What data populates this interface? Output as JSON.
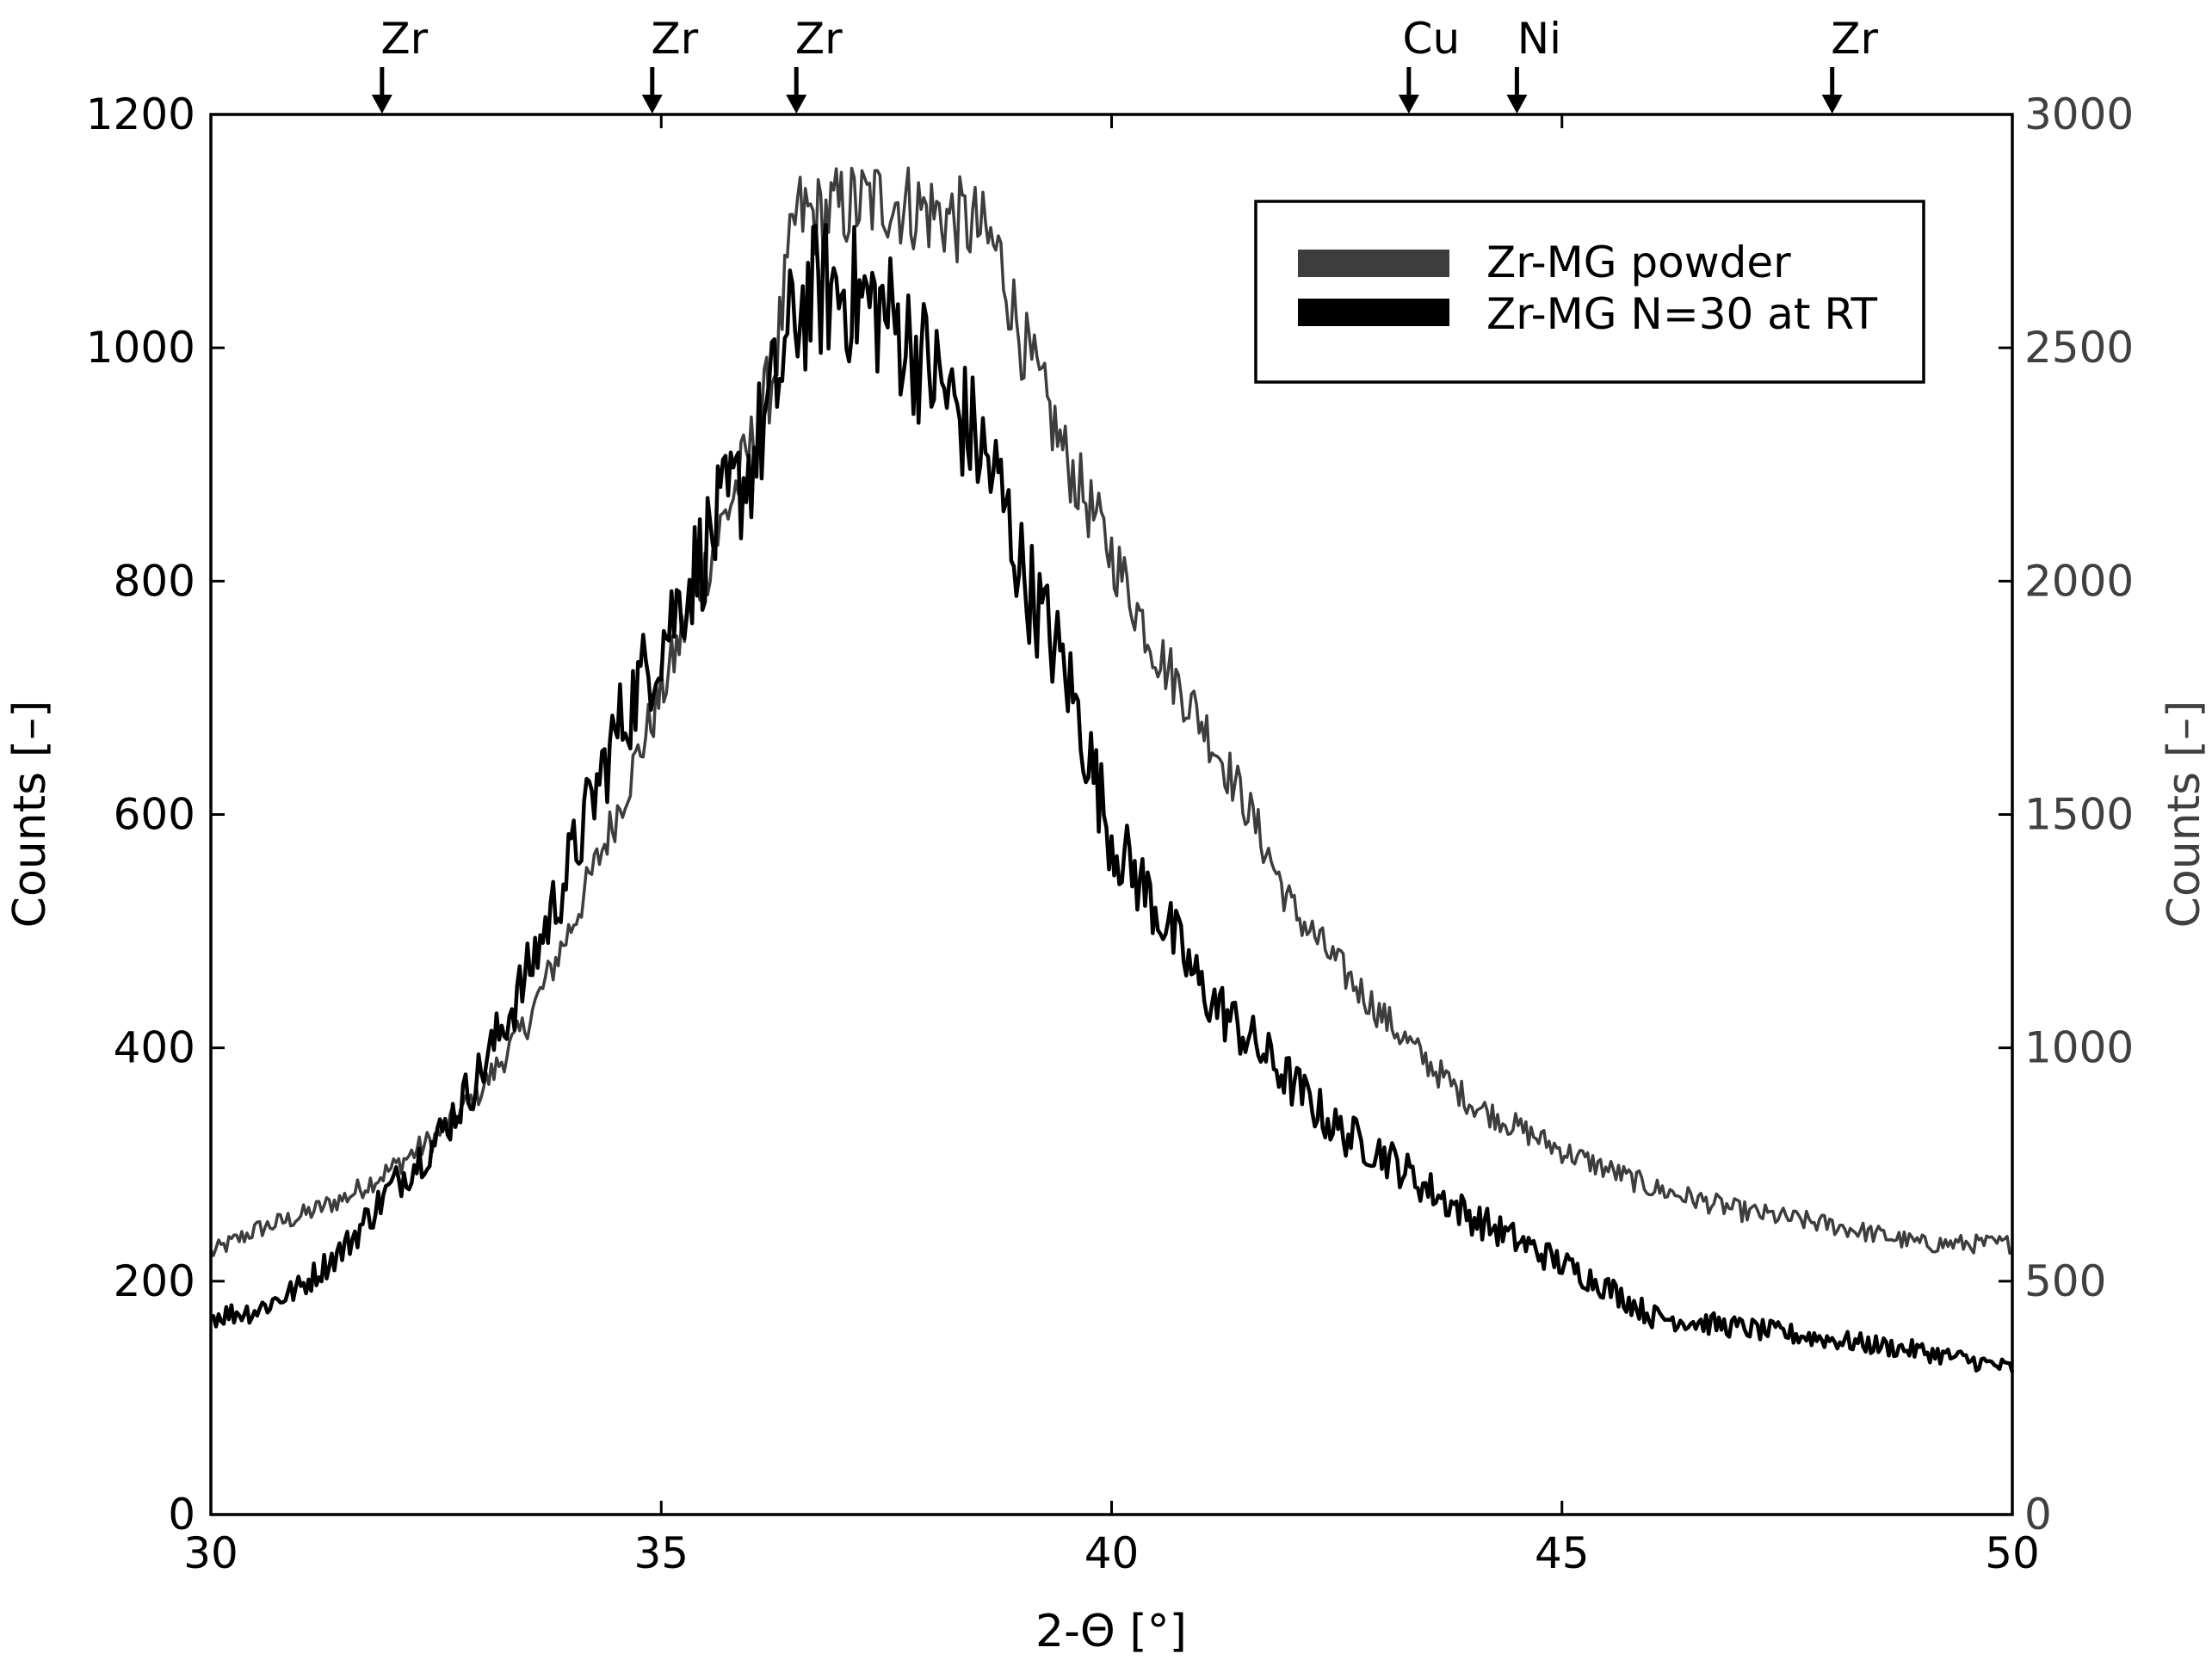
{
  "chart_data": {
    "type": "line",
    "xlabel": "2-Θ [°]",
    "ylabel_left": "Counts [–]",
    "ylabel_right": "Counts [–]",
    "xlim": [
      30,
      50
    ],
    "ylim_left": [
      0,
      1200
    ],
    "ylim_right": [
      0,
      3000
    ],
    "x_ticks": [
      30,
      35,
      40,
      45,
      50
    ],
    "y_ticks_left": [
      0,
      200,
      400,
      600,
      800,
      1000,
      1200
    ],
    "y_ticks_right": [
      0,
      500,
      1000,
      1500,
      2000,
      2500,
      3000
    ],
    "grid": false,
    "legend_position": "top-right",
    "peak_markers": [
      {
        "label": "Zr",
        "x": 31.9
      },
      {
        "label": "Zr",
        "x": 34.9
      },
      {
        "label": "Zr",
        "x": 36.5
      },
      {
        "label": "Cu",
        "x": 43.3
      },
      {
        "label": "Ni",
        "x": 44.5
      },
      {
        "label": "Zr",
        "x": 48.0
      }
    ],
    "series": [
      {
        "name": "Zr-MG powder",
        "axis": "right",
        "color": "#3d3d3d",
        "x": [
          30,
          30.5,
          31,
          31.5,
          32,
          32.5,
          33,
          33.5,
          34,
          34.5,
          35,
          35.5,
          36,
          36.25,
          36.5,
          36.75,
          37,
          37.5,
          38,
          38.5,
          38.75,
          39,
          39.5,
          40,
          40.5,
          41,
          41.5,
          42,
          42.5,
          43,
          43.5,
          44,
          45,
          46,
          47,
          48,
          49,
          50
        ],
        "values": [
          560,
          610,
          640,
          680,
          740,
          810,
          910,
          1050,
          1260,
          1500,
          1760,
          2030,
          2290,
          2450,
          2790,
          2780,
          2800,
          2820,
          2790,
          2760,
          2700,
          2520,
          2260,
          2060,
          1850,
          1700,
          1520,
          1300,
          1180,
          1070,
          970,
          880,
          780,
          700,
          650,
          620,
          580,
          580
        ]
      },
      {
        "name": "Zr-MG N=30 at RT",
        "axis": "left",
        "color": "#000000",
        "x": [
          30,
          30.5,
          31,
          31.5,
          32,
          32.5,
          33,
          33.5,
          34,
          34.5,
          35,
          35.5,
          36,
          36.25,
          36.5,
          36.75,
          37,
          37.5,
          38,
          38.5,
          38.75,
          39,
          39.5,
          40,
          40.5,
          41,
          41.5,
          42,
          42.5,
          43,
          43.5,
          44,
          44.5,
          45,
          45.5,
          46,
          47,
          48,
          49,
          50
        ],
        "values": [
          170,
          175,
          195,
          230,
          280,
          320,
          380,
          460,
          560,
          670,
          750,
          830,
          900,
          960,
          1030,
          1050,
          1050,
          1030,
          980,
          920,
          880,
          810,
          720,
          580,
          520,
          450,
          410,
          370,
          330,
          310,
          280,
          255,
          235,
          215,
          195,
          170,
          160,
          150,
          140,
          125
        ]
      }
    ]
  }
}
